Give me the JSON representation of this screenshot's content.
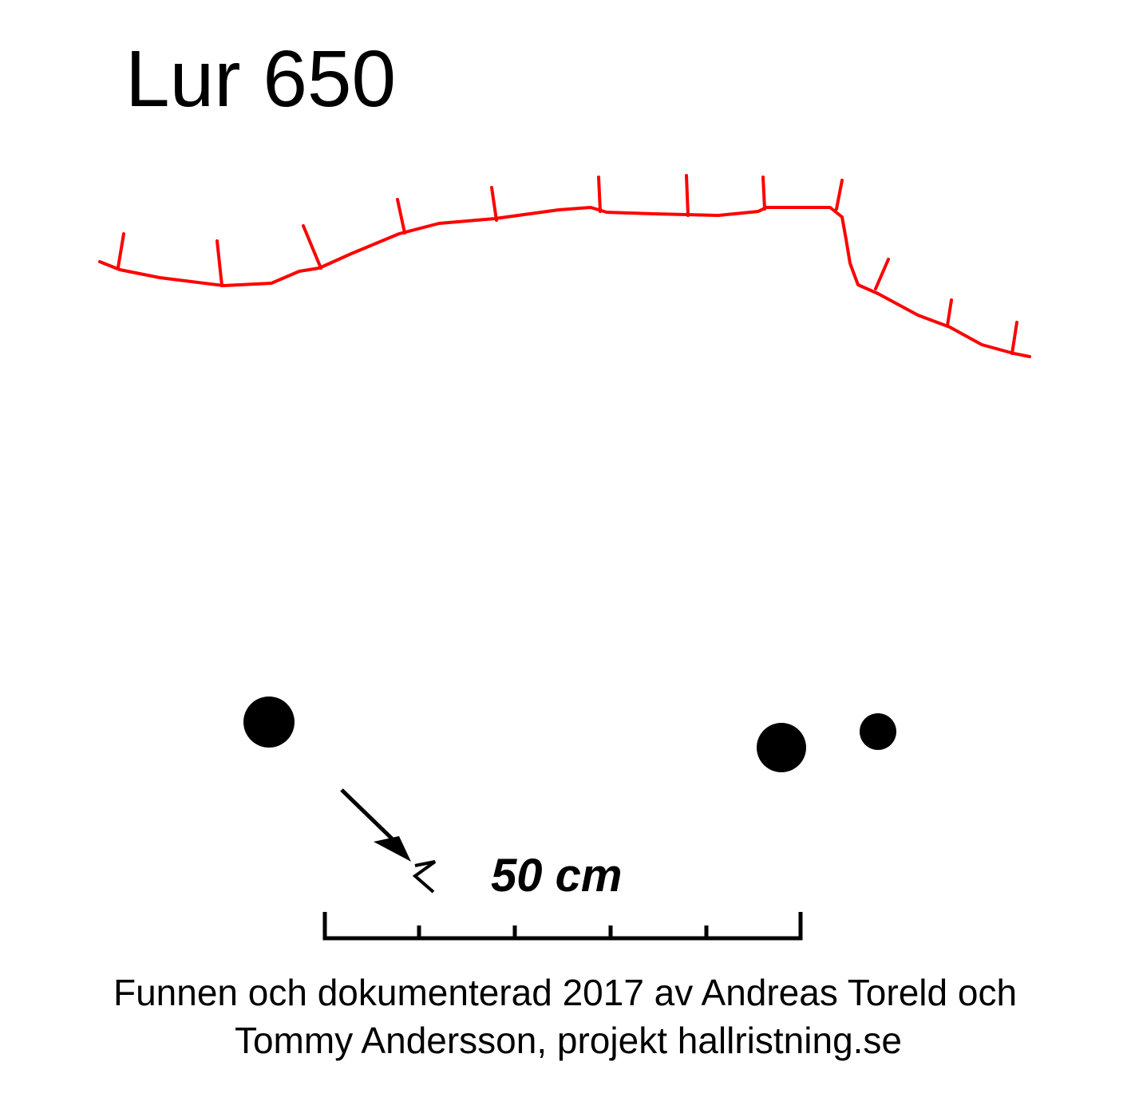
{
  "title": "Lur 650",
  "scale": {
    "label": "50 cm"
  },
  "caption": {
    "lines": [
      "Funnen och dokumenterad 2017 av Andreas Toreld och",
      "Tommy Andersson, projekt hallristning.se"
    ]
  }
}
